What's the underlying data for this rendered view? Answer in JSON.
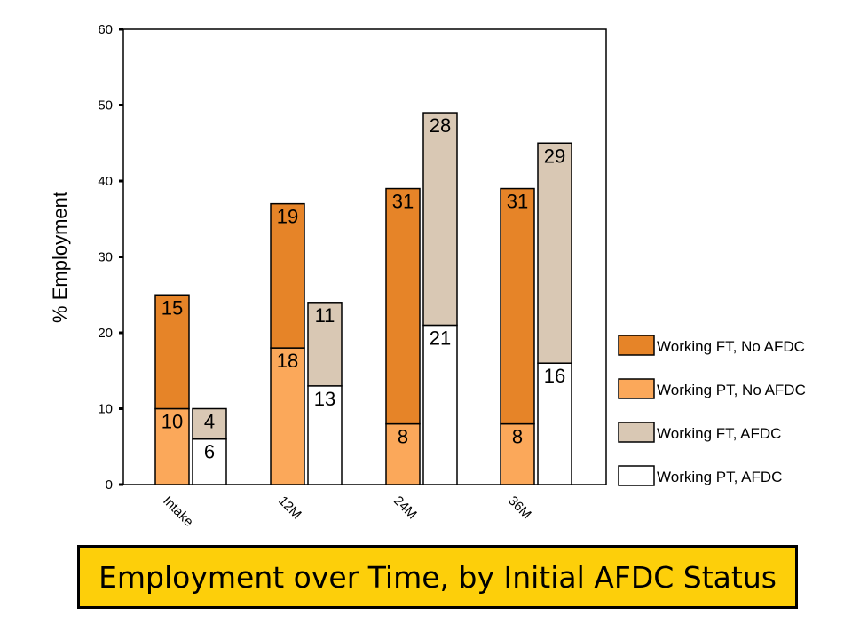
{
  "chart_data": {
    "type": "bar",
    "stacked": true,
    "title": "Employment over Time, by Initial AFDC Status",
    "ylabel": "% Employment",
    "xlabel": "",
    "ylim": [
      0,
      60
    ],
    "yticks": [
      "0",
      "10",
      "20",
      "30",
      "40",
      "50",
      "60"
    ],
    "categories": [
      "Intake",
      "12M",
      "24M",
      "36M"
    ],
    "groups": [
      {
        "stack": "No AFDC",
        "series": [
          {
            "name": "Working PT, No AFDC",
            "color": "#fba85a",
            "values": [
              10,
              18,
              8,
              8
            ]
          },
          {
            "name": "Working FT, No AFDC",
            "color": "#e68428",
            "values": [
              15,
              19,
              31,
              31
            ]
          }
        ]
      },
      {
        "stack": "AFDC",
        "series": [
          {
            "name": "Working PT, AFDC",
            "color": "#ffffff",
            "values": [
              6,
              13,
              21,
              16
            ]
          },
          {
            "name": "Working FT, AFDC",
            "color": "#d9c8b4",
            "values": [
              4,
              11,
              28,
              29
            ]
          }
        ]
      }
    ],
    "legend": [
      {
        "label": "Working FT, No AFDC",
        "color": "#e68428"
      },
      {
        "label": "Working PT, No AFDC",
        "color": "#fba85a"
      },
      {
        "label": "Working FT, AFDC",
        "color": "#d9c8b4"
      },
      {
        "label": "Working PT, AFDC",
        "color": "#ffffff"
      }
    ],
    "legend_position": "right",
    "grid": false
  }
}
